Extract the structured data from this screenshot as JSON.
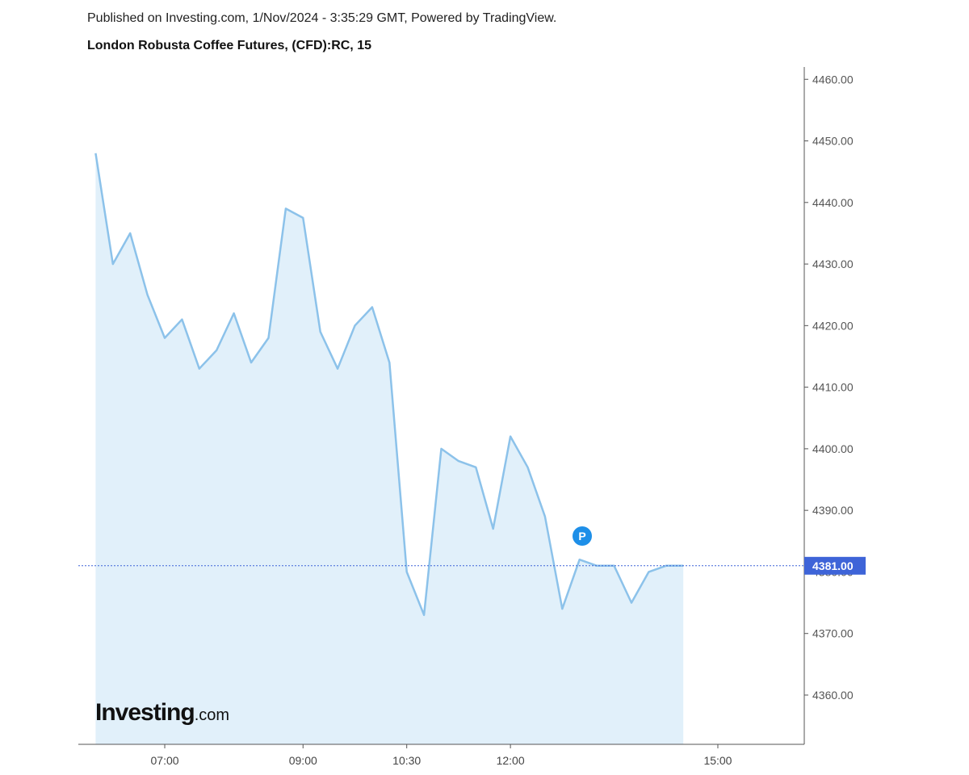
{
  "header": {
    "published": "Published on Investing.com, 1/Nov/2024 - 3:35:29 GMT, Powered by TradingView.",
    "title": "London Robusta Coffee Futures, (CFD):RC, 15"
  },
  "logo": {
    "brand": "Investing",
    "suffix": ".com"
  },
  "marker": {
    "label": "P",
    "color": "#1e8fe8"
  },
  "chart_data": {
    "type": "area",
    "xlabel": "",
    "ylabel": "",
    "ylim": [
      4352,
      4462
    ],
    "y_ticks": [
      4360,
      4370,
      4380,
      4390,
      4400,
      4410,
      4420,
      4430,
      4440,
      4450,
      4460
    ],
    "y_tick_labels": [
      "4360.00",
      "4370.00",
      "4380.00",
      "4390.00",
      "4400.00",
      "4410.00",
      "4420.00",
      "4430.00",
      "4440.00",
      "4450.00",
      "4460.00"
    ],
    "x_range": [
      "05:45",
      "16:15"
    ],
    "x_ticks": [
      "07:00",
      "09:00",
      "10:30",
      "12:00",
      "15:00"
    ],
    "grid": false,
    "last_price": 4381.0,
    "last_price_label": "4381.00",
    "line_color": "#8cc2ea",
    "fill_color": "#e1f0fa",
    "price_tag_color": "#3e64d8",
    "series": [
      {
        "x": [
          "06:00",
          "06:15",
          "06:30",
          "06:45",
          "07:00",
          "07:15",
          "07:30",
          "07:45",
          "08:00",
          "08:15",
          "08:30",
          "08:45",
          "09:00",
          "09:15",
          "09:30",
          "09:45",
          "10:00",
          "10:15",
          "10:30",
          "10:45",
          "11:00",
          "11:15",
          "11:30",
          "11:45",
          "12:00",
          "12:15",
          "12:30",
          "12:45",
          "13:00",
          "13:15",
          "13:30",
          "13:45",
          "14:00",
          "14:15",
          "14:30"
        ],
        "values": [
          4448,
          4430,
          4435,
          4425,
          4418,
          4421,
          4413,
          4416,
          4422,
          4414,
          4418,
          4439,
          4437.5,
          4419,
          4413,
          4420,
          4423,
          4414,
          4380,
          4373,
          4400,
          4398,
          4397,
          4387,
          4402,
          4397,
          4389,
          4374,
          4382,
          4381,
          4381,
          4375,
          4380,
          4381,
          4381
        ]
      }
    ]
  }
}
